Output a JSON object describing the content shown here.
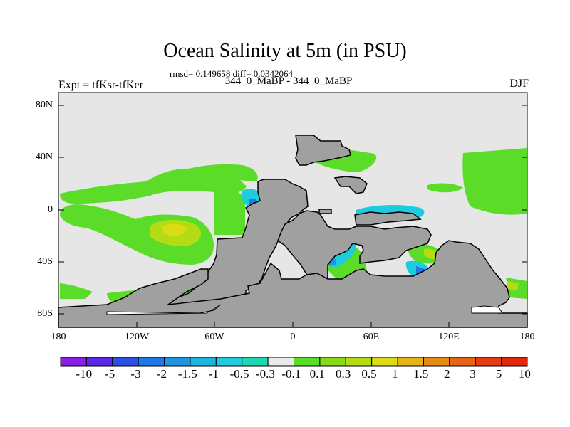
{
  "title": "Ocean Salinity at 5m (in PSU)",
  "stats": "rmsd= 0.149658 diff= 0.0342064",
  "subtitle": "344_0_MaBP - 344_0_MaBP",
  "left_label": "Expt = tfKsr-tfKer",
  "right_label": "DJF",
  "y_ticks": [
    "80N",
    "40N",
    "0",
    "40S",
    "80S"
  ],
  "x_ticks": [
    "180",
    "120W",
    "60W",
    "0",
    "60E",
    "120E",
    "180"
  ],
  "legend": {
    "colors": [
      "#8a1ee6",
      "#5a28e6",
      "#2c50e6",
      "#1e78ea",
      "#1e96e6",
      "#1eb4e0",
      "#1ecce0",
      "#1ed8b4",
      "#eaeaea",
      "#5adc28",
      "#88dc14",
      "#b4dc14",
      "#dcdc14",
      "#e6b414",
      "#e68c14",
      "#e66414",
      "#e63c14",
      "#e0280a"
    ],
    "labels": [
      "-10",
      "-5",
      "-3",
      "-2",
      "-1.5",
      "-1",
      "-0.5",
      "-0.3",
      "-0.1",
      "0.1",
      "0.3",
      "0.5",
      "1",
      "1.5",
      "2",
      "3",
      "5",
      "10"
    ]
  },
  "colors": {
    "land": "#a0a0a0",
    "ocean_neutral": "#e6e6e6"
  }
}
